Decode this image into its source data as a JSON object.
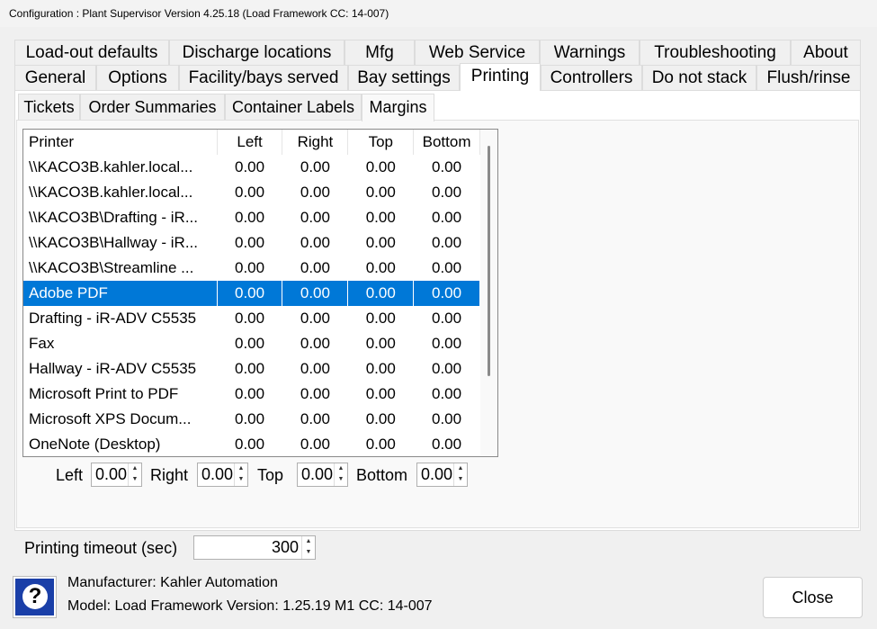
{
  "window": {
    "title": "Configuration : Plant Supervisor Version 4.25.18 (Load Framework CC: 14-007)"
  },
  "tabs_row1": [
    "Load-out defaults",
    "Discharge locations",
    "Mfg",
    "Web Service",
    "Warnings",
    "Troubleshooting",
    "About"
  ],
  "tabs_row2": [
    "General",
    "Options",
    "Facility/bays served",
    "Bay settings",
    "Printing",
    "Controllers",
    "Do not stack",
    "Flush/rinse"
  ],
  "selected_tab": "Printing",
  "subtabs": [
    "Tickets",
    "Order Summaries",
    "Container Labels",
    "Margins"
  ],
  "selected_subtab": "Margins",
  "table": {
    "columns": [
      "Printer",
      "Left",
      "Right",
      "Top",
      "Bottom"
    ],
    "rows": [
      [
        "\\\\KACO3B.kahler.local...",
        "0.00",
        "0.00",
        "0.00",
        "0.00"
      ],
      [
        "\\\\KACO3B.kahler.local...",
        "0.00",
        "0.00",
        "0.00",
        "0.00"
      ],
      [
        "\\\\KACO3B\\Drafting - iR...",
        "0.00",
        "0.00",
        "0.00",
        "0.00"
      ],
      [
        "\\\\KACO3B\\Hallway - iR...",
        "0.00",
        "0.00",
        "0.00",
        "0.00"
      ],
      [
        "\\\\KACO3B\\Streamline ...",
        "0.00",
        "0.00",
        "0.00",
        "0.00"
      ],
      [
        "Adobe PDF",
        "0.00",
        "0.00",
        "0.00",
        "0.00"
      ],
      [
        "Drafting - iR-ADV C5535",
        "0.00",
        "0.00",
        "0.00",
        "0.00"
      ],
      [
        "Fax",
        "0.00",
        "0.00",
        "0.00",
        "0.00"
      ],
      [
        "Hallway - iR-ADV C5535",
        "0.00",
        "0.00",
        "0.00",
        "0.00"
      ],
      [
        "Microsoft Print to PDF",
        "0.00",
        "0.00",
        "0.00",
        "0.00"
      ],
      [
        "Microsoft XPS Docum...",
        "0.00",
        "0.00",
        "0.00",
        "0.00"
      ],
      [
        "OneNote (Desktop)",
        "0.00",
        "0.00",
        "0.00",
        "0.00"
      ]
    ],
    "selected_row": 5
  },
  "margins": {
    "left_label": "Left",
    "left": "0.00",
    "right_label": "Right",
    "right": "0.00",
    "top_label": "Top",
    "top": "0.00",
    "bottom_label": "Bottom",
    "bottom": "0.00"
  },
  "timeout": {
    "label": "Printing timeout (sec)",
    "value": "300"
  },
  "footer": {
    "manufacturer": "Manufacturer: Kahler Automation",
    "model": "Model: Load Framework Version: 1.25.19 M1 CC: 14-007",
    "close_label": "Close",
    "help_icon": "question-icon"
  },
  "colors": {
    "selection": "#0078d7",
    "help_bg": "#1a3fa8"
  }
}
